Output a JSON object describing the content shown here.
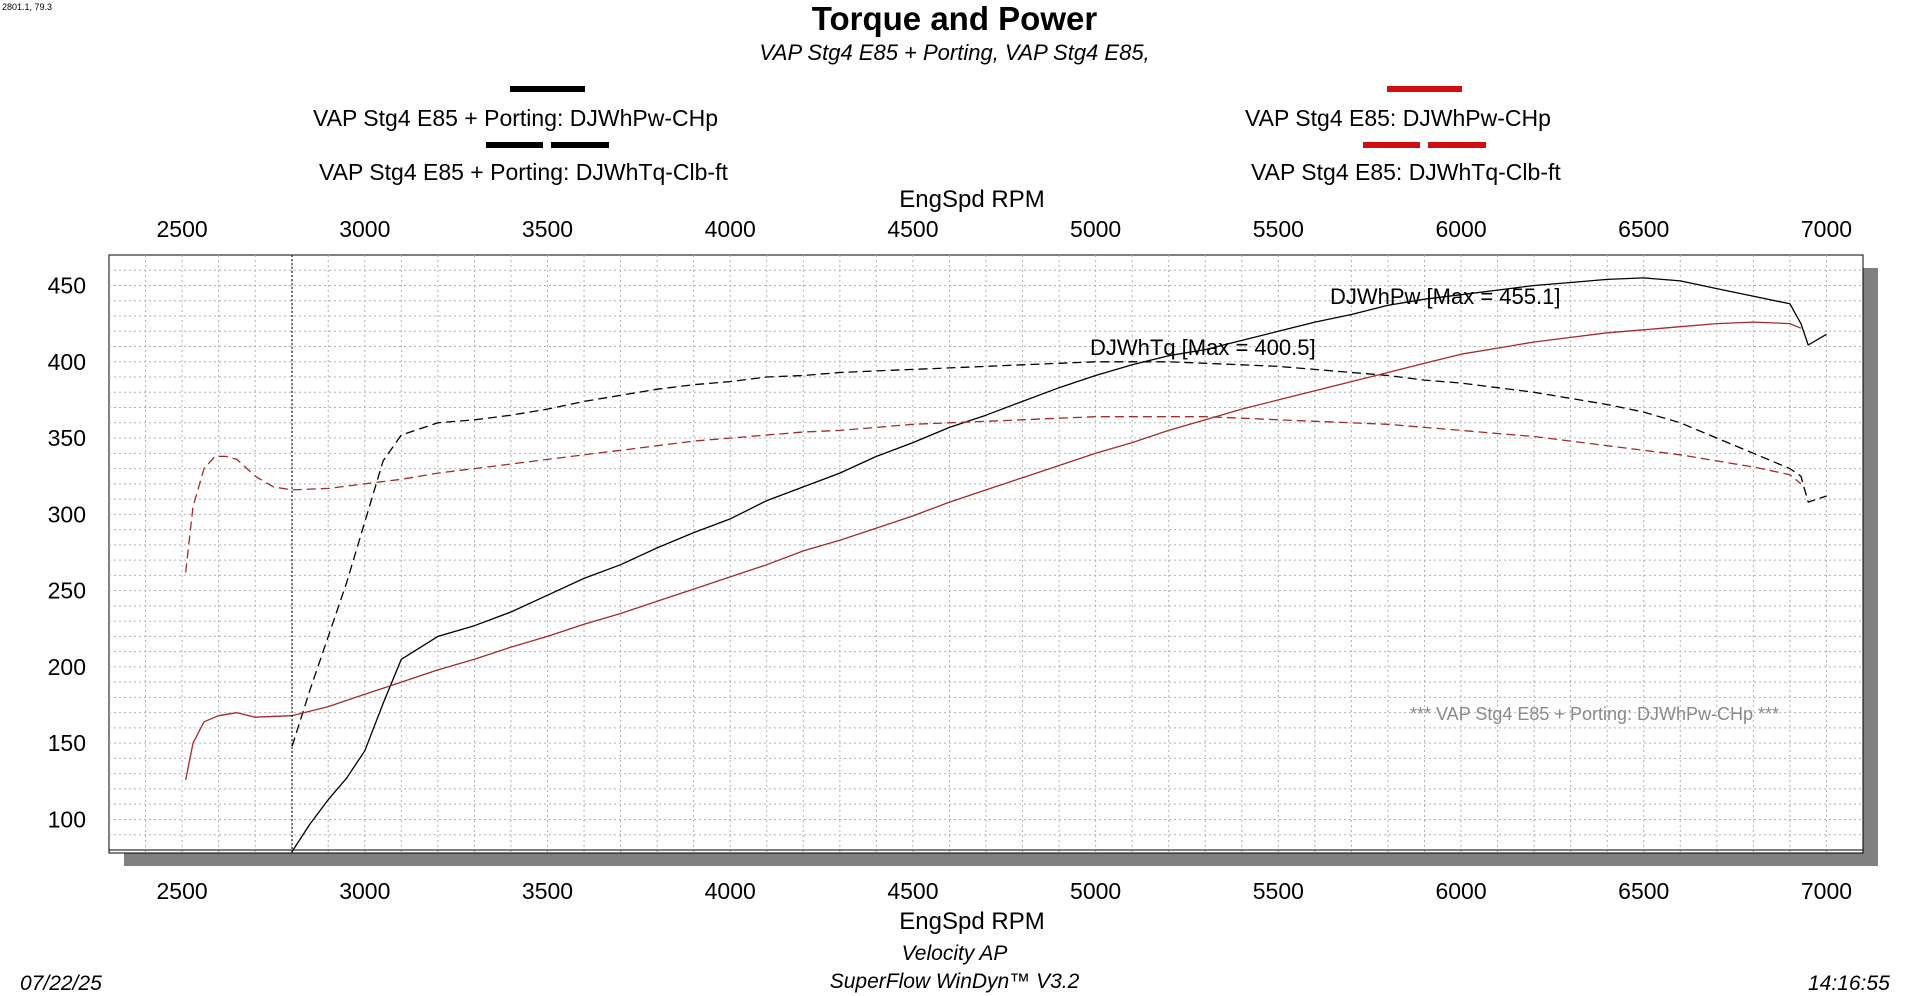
{
  "corner_readout": "2801.1, 79.3",
  "footer": {
    "date": "07/22/25",
    "company": "Velocity AP",
    "software": "SuperFlow WinDyn™ V3.2",
    "time": "14:16:55"
  },
  "colors": {
    "run1": "#000000",
    "run2": "#a52a2a",
    "legend_red": "#d01010",
    "grid": "#b0b0b0"
  },
  "chart_data": {
    "type": "line",
    "title": "Torque and Power",
    "subtitle": "VAP Stg4 E85 + Porting, VAP Stg4 E85,",
    "xlabel": "EngSpd RPM",
    "xlim": [
      2300,
      7100
    ],
    "ylim": [
      78,
      470
    ],
    "xticks": [
      2500,
      3000,
      3500,
      4000,
      4500,
      5000,
      5500,
      6000,
      6500,
      7000
    ],
    "yticks": [
      100,
      150,
      200,
      250,
      300,
      350,
      400,
      450
    ],
    "grid": true,
    "legend": [
      {
        "label": "VAP Stg4 E85 + Porting: DJWhPw-CHp",
        "style": "solid",
        "color": "#000000"
      },
      {
        "label": "VAP Stg4 E85 + Porting: DJWhTq-Clb-ft",
        "style": "dashed",
        "color": "#000000"
      },
      {
        "label": "VAP Stg4 E85: DJWhPw-CHp",
        "style": "solid",
        "color": "#d01010"
      },
      {
        "label": "VAP Stg4 E85: DJWhTq-Clb-ft",
        "style": "dashed",
        "color": "#d01010"
      }
    ],
    "annotations": [
      {
        "text": "DJWhPw [Max = 455.1]",
        "x": 5720,
        "y": 450
      },
      {
        "text": "DJWhTq [Max = 400.5]",
        "x": 5050,
        "y": 407
      }
    ],
    "watermark": "*** VAP Stg4 E85 + Porting: DJWhPw-CHp    ***",
    "cursor_x": 2801,
    "series": [
      {
        "name": "VAP Stg4 E85 + Porting: DJWhPw-CHp",
        "style": "solid",
        "color": "#000000",
        "x": [
          2801,
          2850,
          2900,
          2950,
          3000,
          3050,
          3100,
          3200,
          3300,
          3400,
          3500,
          3600,
          3700,
          3800,
          3900,
          4000,
          4100,
          4200,
          4300,
          4400,
          4500,
          4600,
          4700,
          4800,
          4900,
          5000,
          5100,
          5200,
          5300,
          5400,
          5500,
          5600,
          5700,
          5800,
          5900,
          6000,
          6100,
          6200,
          6300,
          6400,
          6500,
          6600,
          6700,
          6800,
          6900,
          6930,
          6950,
          7000
        ],
        "y": [
          79,
          97,
          113,
          127,
          145,
          176,
          205,
          220,
          227,
          236,
          247,
          258,
          267,
          278,
          288,
          297,
          309,
          318,
          327,
          338,
          347,
          357,
          365,
          374,
          383,
          391,
          398,
          404,
          408,
          414,
          420,
          426,
          431,
          437,
          441,
          444,
          447,
          450,
          452,
          454,
          455,
          453,
          448,
          443,
          438,
          425,
          411,
          418
        ]
      },
      {
        "name": "VAP Stg4 E85 + Porting: DJWhTq-Clb-ft",
        "style": "dashed",
        "color": "#000000",
        "x": [
          2801,
          2850,
          2900,
          2950,
          3000,
          3050,
          3100,
          3200,
          3300,
          3400,
          3500,
          3600,
          3700,
          3800,
          3900,
          4000,
          4100,
          4200,
          4300,
          4400,
          4500,
          4600,
          4700,
          4800,
          4900,
          5000,
          5100,
          5200,
          5300,
          5400,
          5500,
          5600,
          5700,
          5800,
          5900,
          6000,
          6100,
          6200,
          6300,
          6400,
          6500,
          6600,
          6700,
          6800,
          6900,
          6930,
          6950,
          7000
        ],
        "y": [
          148,
          185,
          220,
          255,
          295,
          335,
          352,
          360,
          362,
          365,
          369,
          374,
          378,
          382,
          385,
          387,
          390,
          391,
          393,
          394,
          395,
          396,
          397,
          398,
          399,
          400,
          400,
          400,
          399,
          398,
          397,
          395,
          393,
          391,
          388,
          386,
          383,
          380,
          376,
          372,
          367,
          360,
          350,
          340,
          330,
          325,
          308,
          312
        ]
      },
      {
        "name": "VAP Stg4 E85: DJWhPw-CHp",
        "style": "solid",
        "color": "#a52a2a",
        "x": [
          2510,
          2530,
          2560,
          2600,
          2650,
          2700,
          2800,
          2900,
          3000,
          3100,
          3200,
          3300,
          3400,
          3500,
          3600,
          3700,
          3800,
          3900,
          4000,
          4100,
          4200,
          4300,
          4400,
          4500,
          4600,
          4700,
          4800,
          4900,
          5000,
          5100,
          5200,
          5300,
          5400,
          5500,
          5600,
          5700,
          5800,
          5900,
          6000,
          6100,
          6200,
          6300,
          6400,
          6500,
          6600,
          6700,
          6800,
          6900,
          6930
        ],
        "y": [
          126,
          150,
          164,
          168,
          170,
          167,
          168,
          174,
          182,
          190,
          198,
          205,
          213,
          220,
          228,
          235,
          243,
          251,
          259,
          267,
          276,
          283,
          291,
          299,
          308,
          316,
          324,
          332,
          340,
          347,
          355,
          362,
          369,
          375,
          381,
          387,
          393,
          399,
          405,
          409,
          413,
          416,
          419,
          421,
          423,
          425,
          426,
          425,
          422
        ]
      },
      {
        "name": "VAP Stg4 E85: DJWhTq-Clb-ft",
        "style": "dashed",
        "color": "#a52a2a",
        "x": [
          2510,
          2530,
          2560,
          2590,
          2620,
          2650,
          2700,
          2750,
          2800,
          2900,
          3000,
          3100,
          3200,
          3300,
          3400,
          3500,
          3600,
          3700,
          3800,
          3900,
          4000,
          4100,
          4200,
          4300,
          4400,
          4500,
          4600,
          4700,
          4800,
          4900,
          5000,
          5100,
          5200,
          5300,
          5400,
          5500,
          5600,
          5700,
          5800,
          5900,
          6000,
          6100,
          6200,
          6300,
          6400,
          6500,
          6600,
          6700,
          6800,
          6900,
          6930
        ],
        "y": [
          262,
          305,
          330,
          338,
          338,
          336,
          325,
          318,
          316,
          317,
          320,
          323,
          327,
          330,
          333,
          336,
          339,
          342,
          345,
          348,
          350,
          352,
          354,
          355,
          357,
          359,
          360,
          361,
          362,
          363,
          364,
          364,
          364,
          364,
          363,
          362,
          361,
          360,
          359,
          357,
          355,
          353,
          351,
          348,
          345,
          342,
          339,
          335,
          331,
          326,
          320
        ]
      }
    ]
  }
}
